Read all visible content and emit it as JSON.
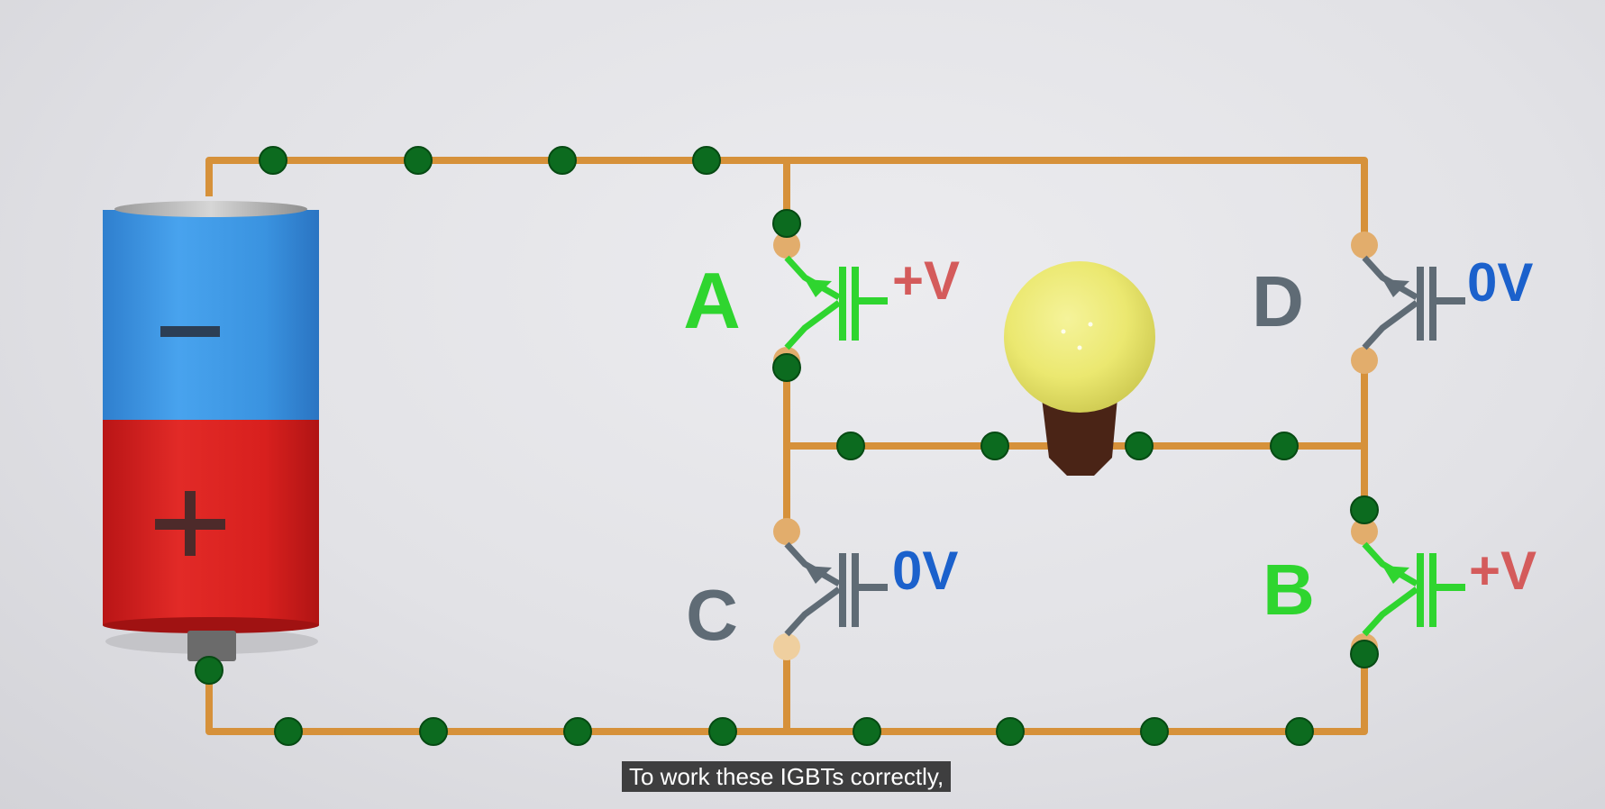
{
  "diagram": {
    "battery": {
      "top_terminal": "−",
      "bottom_terminal": "+"
    },
    "switches": [
      {
        "id": "A",
        "voltage": "+V",
        "state": "on"
      },
      {
        "id": "D",
        "voltage": "0V",
        "state": "off"
      },
      {
        "id": "C",
        "voltage": "0V",
        "state": "off"
      },
      {
        "id": "B",
        "voltage": "+V",
        "state": "on"
      }
    ],
    "colors": {
      "active_switch": "#2fd52f",
      "inactive_switch": "#5f6b75",
      "positive_voltage": "#d45b5b",
      "zero_voltage": "#1b61cc",
      "wire": "#d6913a",
      "electron": "#0c6b1f",
      "battery_negative": "#3a93e0",
      "battery_positive": "#d8201e",
      "bulb": "#ecea72"
    }
  },
  "caption": "To work these IGBTs correctly,"
}
